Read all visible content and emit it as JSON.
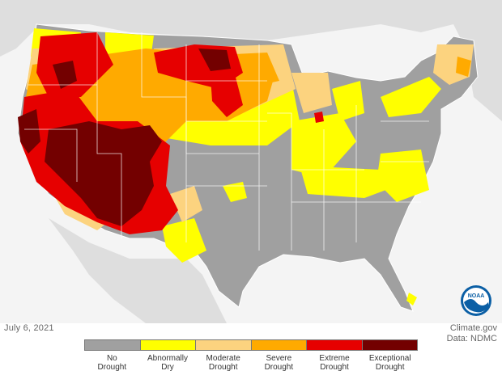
{
  "map": {
    "date": "July 6, 2021",
    "credit_line1": "Climate.gov",
    "credit_line2": "Data: NDMC",
    "logo_text": "NOAA",
    "background_color": "#f4f4f4",
    "land_context_color": "#dedede",
    "state_border_color": "#ffffff"
  },
  "legend": {
    "categories": [
      {
        "line1": "No",
        "line2": "Drought",
        "color": "#a0a0a0"
      },
      {
        "line1": "Abnormally",
        "line2": "Dry",
        "color": "#ffff00"
      },
      {
        "line1": "Moderate",
        "line2": "Drought",
        "color": "#fcd37f"
      },
      {
        "line1": "Severe",
        "line2": "Drought",
        "color": "#ffaa00"
      },
      {
        "line1": "Extreme",
        "line2": "Drought",
        "color": "#e60000"
      },
      {
        "line1": "Exceptional",
        "line2": "Drought",
        "color": "#730000"
      }
    ]
  }
}
